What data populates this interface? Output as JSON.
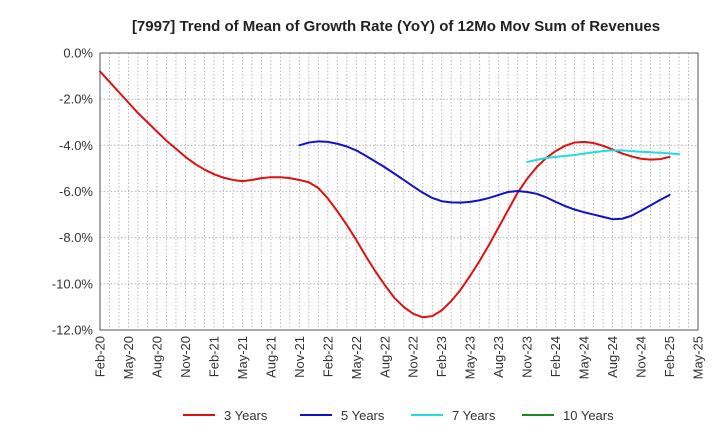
{
  "chart_data": {
    "type": "line",
    "title": "[7997]  Trend of Mean of Growth Rate (YoY) of 12Mo Mov Sum of Revenues",
    "xlabel": "",
    "ylabel": "",
    "ylim": [
      -12,
      0
    ],
    "y_ticks": [
      "0.0%",
      "-2.0%",
      "-4.0%",
      "-6.0%",
      "-8.0%",
      "-10.0%",
      "-12.0%"
    ],
    "y_tick_values": [
      0,
      -2,
      -4,
      -6,
      -8,
      -10,
      -12
    ],
    "x_ticks": [
      "Feb-20",
      "May-20",
      "Aug-20",
      "Nov-20",
      "Feb-21",
      "May-21",
      "Aug-21",
      "Nov-21",
      "Feb-22",
      "May-22",
      "Aug-22",
      "Nov-22",
      "Feb-23",
      "May-23",
      "Aug-23",
      "Nov-23",
      "Feb-24",
      "May-24",
      "Aug-24",
      "Nov-24",
      "Feb-25",
      "May-25"
    ],
    "x_range_months": [
      0,
      63
    ],
    "grid": true,
    "legend_position": "bottom",
    "series": [
      {
        "name": "3 Years",
        "color": "#dd1111",
        "start_month": 0,
        "values": [
          -0.8,
          -1.25,
          -1.7,
          -2.15,
          -2.6,
          -3.0,
          -3.4,
          -3.8,
          -4.15,
          -4.5,
          -4.8,
          -5.05,
          -5.25,
          -5.4,
          -5.5,
          -5.55,
          -5.5,
          -5.42,
          -5.38,
          -5.38,
          -5.42,
          -5.5,
          -5.6,
          -5.85,
          -6.3,
          -6.85,
          -7.45,
          -8.1,
          -8.8,
          -9.45,
          -10.05,
          -10.6,
          -11.0,
          -11.3,
          -11.45,
          -11.4,
          -11.15,
          -10.75,
          -10.25,
          -9.65,
          -9.0,
          -8.3,
          -7.55,
          -6.8,
          -6.05,
          -5.45,
          -4.95,
          -4.55,
          -4.25,
          -4.02,
          -3.88,
          -3.85,
          -3.9,
          -4.02,
          -4.18,
          -4.35,
          -4.48,
          -4.58,
          -4.62,
          -4.6,
          -4.5
        ]
      },
      {
        "name": "5 Years",
        "color": "#1111cc",
        "start_month": 21,
        "values": [
          -4.0,
          -3.88,
          -3.83,
          -3.85,
          -3.93,
          -4.05,
          -4.22,
          -4.45,
          -4.7,
          -4.95,
          -5.22,
          -5.5,
          -5.78,
          -6.05,
          -6.28,
          -6.42,
          -6.47,
          -6.48,
          -6.45,
          -6.38,
          -6.28,
          -6.15,
          -6.02,
          -5.98,
          -6.02,
          -6.1,
          -6.25,
          -6.45,
          -6.63,
          -6.78,
          -6.9,
          -7.0,
          -7.1,
          -7.2,
          -7.18,
          -7.05,
          -6.83,
          -6.6,
          -6.37,
          -6.15
        ]
      },
      {
        "name": "7 Years",
        "color": "#22dddd",
        "start_month": 45,
        "values": [
          -4.72,
          -4.63,
          -4.55,
          -4.5,
          -4.46,
          -4.42,
          -4.36,
          -4.3,
          -4.25,
          -4.22,
          -4.22,
          -4.25,
          -4.28,
          -4.3,
          -4.32,
          -4.35,
          -4.38
        ]
      },
      {
        "name": "10 Years",
        "color": "#228822",
        "start_month": 0,
        "values": []
      }
    ]
  }
}
